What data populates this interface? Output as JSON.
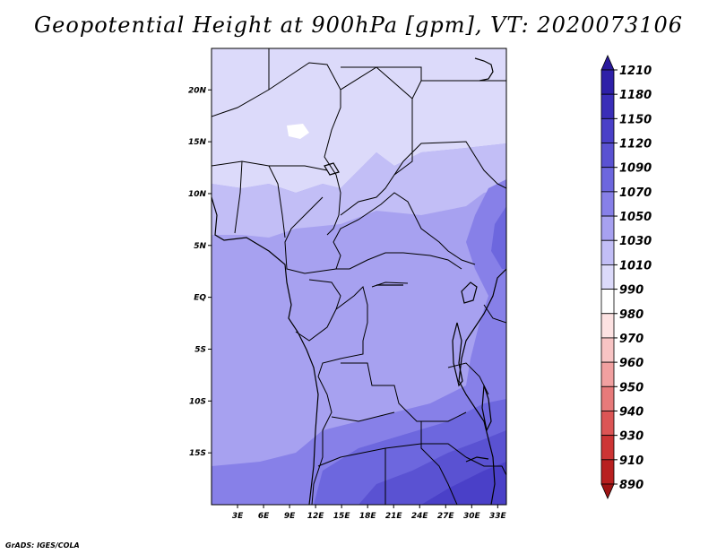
{
  "title": "Geopotential Height at 900hPa [gpm], VT: 2020073106",
  "credit": "GrADS: IGES/COLA",
  "chart_data": {
    "type": "heatmap",
    "title": "Geopotential Height at 900hPa [gpm], VT: 2020073106",
    "variable": "Geopotential Height",
    "level": "900hPa",
    "units": "gpm",
    "valid_time": "2020073106",
    "lon_range": [
      0,
      34
    ],
    "lat_range": [
      -20,
      24
    ],
    "x_ticks": [
      "3E",
      "6E",
      "9E",
      "12E",
      "15E",
      "18E",
      "21E",
      "24E",
      "27E",
      "30E",
      "33E"
    ],
    "x_tick_values": [
      3,
      6,
      9,
      12,
      15,
      18,
      21,
      24,
      27,
      30,
      33
    ],
    "y_ticks": [
      "20N",
      "15N",
      "10N",
      "5N",
      "EQ",
      "5S",
      "10S",
      "15S"
    ],
    "y_tick_values": [
      20,
      15,
      10,
      5,
      0,
      -5,
      -10,
      -15
    ],
    "colorbar": {
      "levels": [
        "1210",
        "1180",
        "1150",
        "1120",
        "1090",
        "1070",
        "1050",
        "1030",
        "1010",
        "990",
        "980",
        "970",
        "960",
        "950",
        "940",
        "930",
        "910",
        "890"
      ],
      "colors": [
        "#2a1a9c",
        "#2e20a8",
        "#3a2eb8",
        "#4a40c8",
        "#5a52d2",
        "#6d67de",
        "#8780e8",
        "#a7a1f0",
        "#c2bef6",
        "#dcdafa",
        "#ffffff",
        "#fde2e2",
        "#f8c4c4",
        "#f1a0a0",
        "#e77a7a",
        "#dc5555",
        "#cd3535",
        "#b82020",
        "#9e1414"
      ]
    }
  }
}
